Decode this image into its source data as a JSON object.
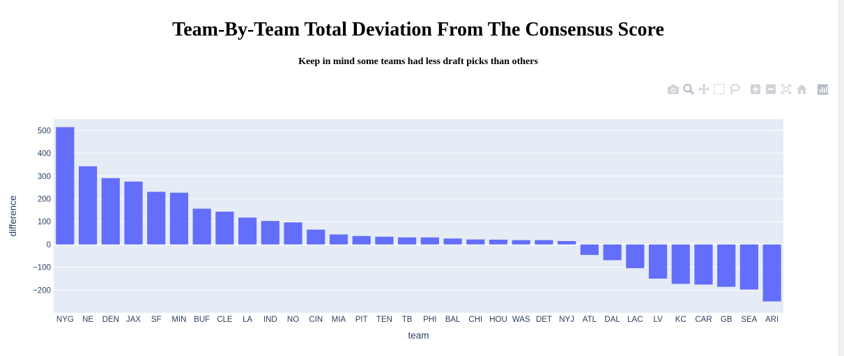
{
  "chart_data": {
    "type": "bar",
    "title": "Team-By-Team Total Deviation From The Consensus Score",
    "subtitle": "Keep in mind some teams had less draft picks than others",
    "xlabel": "team",
    "ylabel": "difference",
    "ylim": [
      -300,
      550
    ],
    "yticks": [
      -200,
      -100,
      0,
      100,
      200,
      300,
      400,
      500
    ],
    "grid": true,
    "bar_color": "#636efa",
    "plot_background": "#e5ecf6",
    "categories": [
      "NYG",
      "NE",
      "DEN",
      "JAX",
      "SF",
      "MIN",
      "BUF",
      "CLE",
      "LA",
      "IND",
      "NO",
      "CIN",
      "MIA",
      "PIT",
      "TEN",
      "TB",
      "PHI",
      "BAL",
      "CHI",
      "HOU",
      "WAS",
      "DET",
      "NYJ",
      "ATL",
      "DAL",
      "LAC",
      "LV",
      "KC",
      "CAR",
      "GB",
      "SEA",
      "ARI"
    ],
    "values": [
      515,
      343,
      291,
      276,
      231,
      227,
      157,
      144,
      118,
      103,
      97,
      65,
      44,
      37,
      34,
      31,
      31,
      26,
      22,
      21,
      19,
      19,
      15,
      -46,
      -69,
      -104,
      -150,
      -173,
      -176,
      -186,
      -198,
      -250
    ]
  },
  "modebar": {
    "icons": [
      "camera-icon",
      "zoom-icon",
      "pan-icon",
      "box-select-icon",
      "lasso-icon",
      "zoom-in-icon",
      "zoom-out-icon",
      "autoscale-icon",
      "reset-axes-icon",
      "plotly-logo-icon"
    ]
  }
}
